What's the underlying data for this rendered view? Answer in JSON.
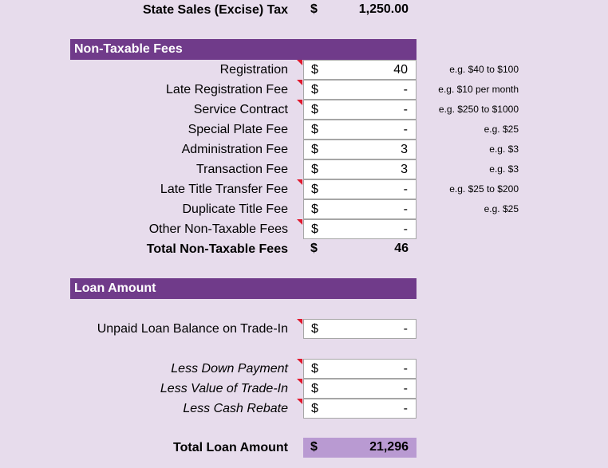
{
  "sales_tax": {
    "label": "State Sales (Excise) Tax",
    "dollar": "$",
    "value": "1,250.00"
  },
  "non_taxable": {
    "header": "Non-Taxable Fees",
    "rows": [
      {
        "label": "Registration",
        "dollar": "$",
        "value": "40",
        "note": "e.g. $40 to $100",
        "marker": true
      },
      {
        "label": "Late Registration Fee",
        "dollar": "$",
        "value": "-",
        "note": "e.g. $10 per month",
        "marker": true
      },
      {
        "label": "Service Contract",
        "dollar": "$",
        "value": "-",
        "note": "e.g. $250 to $1000",
        "marker": true
      },
      {
        "label": "Special Plate Fee",
        "dollar": "$",
        "value": "-",
        "note": "e.g. $25",
        "marker": false
      },
      {
        "label": "Administration Fee",
        "dollar": "$",
        "value": "3",
        "note": "e.g. $3",
        "marker": false
      },
      {
        "label": "Transaction Fee",
        "dollar": "$",
        "value": "3",
        "note": "e.g. $3",
        "marker": false
      },
      {
        "label": "Late Title Transfer Fee",
        "dollar": "$",
        "value": "-",
        "note": "e.g. $25 to $200",
        "marker": true
      },
      {
        "label": "Duplicate Title Fee",
        "dollar": "$",
        "value": "-",
        "note": "e.g. $25",
        "marker": false
      },
      {
        "label": "Other Non-Taxable Fees",
        "dollar": "$",
        "value": "-",
        "note": "",
        "marker": true
      }
    ],
    "total": {
      "label": "Total Non-Taxable Fees",
      "dollar": "$",
      "value": "46"
    }
  },
  "loan": {
    "header": "Loan Amount",
    "unpaid": {
      "label": "Unpaid Loan Balance on Trade-In",
      "dollar": "$",
      "value": "-"
    },
    "less": [
      {
        "label": "Less Down Payment",
        "dollar": "$",
        "value": "-"
      },
      {
        "label": "Less Value of Trade-In",
        "dollar": "$",
        "value": "-"
      },
      {
        "label": "Less Cash Rebate",
        "dollar": "$",
        "value": "-"
      }
    ],
    "total": {
      "label": "Total Loan Amount",
      "dollar": "$",
      "value": "21,296"
    }
  },
  "colors": {
    "background": "#e7dcec",
    "header": "#703b8a",
    "total_cell": "#b99ad2",
    "comment_marker": "#e0182d"
  }
}
